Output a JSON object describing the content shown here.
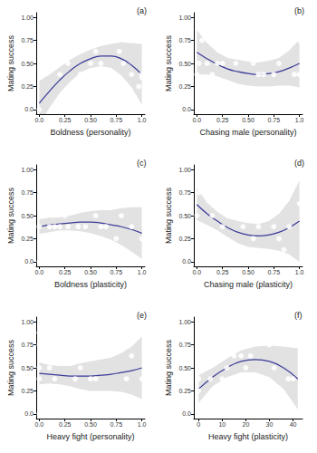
{
  "chart_data": [
    {
      "type": "scatter",
      "label": "(a)",
      "x_label": "Boldness (personality)",
      "y_label": "Mating success",
      "color": "#8a86c8",
      "marker": "circle_open",
      "grid": false,
      "xlim": [
        -0.03,
        1.03
      ],
      "ylim": [
        -0.05,
        1.05
      ],
      "xticks": [
        {
          "value": 0,
          "label": "0.0"
        },
        0.25,
        {
          "value": 0.5,
          "label": "0.50"
        },
        0.75,
        {
          "value": 1,
          "label": "1.0"
        }
      ],
      "yticks": [
        {
          "value": 0,
          "label": "0.0"
        },
        0.25,
        {
          "value": 0.5,
          "label": "0.50"
        },
        0.75,
        {
          "value": 1,
          "label": "1.00"
        }
      ],
      "x": [
        0.0,
        0.05,
        0.2,
        0.25,
        0.28,
        0.3,
        0.38,
        0.4,
        0.45,
        0.5,
        0.55,
        0.6,
        0.62,
        0.7,
        0.75,
        0.78,
        0.8,
        0.82,
        0.85,
        0.88,
        0.9,
        0.92,
        0.95,
        1.0,
        1.0,
        0.97
      ],
      "values": [
        0.0,
        0.5,
        0.38,
        0.75,
        0.5,
        0.63,
        0.75,
        0.38,
        0.38,
        0.5,
        0.63,
        0.5,
        0.38,
        0.88,
        0.75,
        0.63,
        0.0,
        0.5,
        1.0,
        0.75,
        0.38,
        0.0,
        0.0,
        0.38,
        0.35,
        0.25
      ],
      "fit": {
        "color": "#3a3a98",
        "line_style": "solid",
        "x": [
          0,
          0.1,
          0.2,
          0.3,
          0.4,
          0.5,
          0.6,
          0.7,
          0.8,
          0.9,
          1.0
        ],
        "values": [
          0.07,
          0.2,
          0.32,
          0.42,
          0.5,
          0.55,
          0.58,
          0.58,
          0.55,
          0.48,
          0.38
        ],
        "lower": [
          -0.17,
          0.02,
          0.18,
          0.3,
          0.4,
          0.45,
          0.47,
          0.45,
          0.37,
          0.24,
          0.05
        ],
        "upper": [
          0.31,
          0.38,
          0.46,
          0.54,
          0.6,
          0.65,
          0.69,
          0.71,
          0.73,
          0.72,
          0.71
        ]
      }
    },
    {
      "type": "scatter",
      "label": "(b)",
      "x_label": "Chasing male (personality)",
      "y_label": "Mating success",
      "color": "#8a86c8",
      "marker": "circle_open",
      "grid": false,
      "xlim": [
        -0.03,
        1.03
      ],
      "ylim": [
        -0.05,
        1.05
      ],
      "xticks": [
        {
          "value": 0,
          "label": "0.0"
        },
        0.25,
        {
          "value": 0.5,
          "label": "0.50"
        },
        0.75,
        {
          "value": 1,
          "label": "1.0"
        }
      ],
      "yticks": [
        {
          "value": 0,
          "label": "0.0"
        },
        0.25,
        {
          "value": 0.5,
          "label": "0.50"
        },
        0.75,
        {
          "value": 1,
          "label": "1.00"
        }
      ],
      "x": [
        0,
        0.02,
        0.05,
        0.1,
        0.15,
        0.2,
        0.25,
        0.3,
        0.32,
        0.35,
        0.38,
        0.42,
        0.45,
        0.5,
        0.55,
        0.6,
        0.62,
        0.65,
        0.7,
        0.75,
        0.8,
        0.9,
        0.95,
        1.0,
        1.0,
        0.58
      ],
      "values": [
        0.38,
        0.5,
        0.75,
        0.5,
        0.38,
        0.5,
        0.5,
        0.88,
        1.0,
        0.75,
        0.5,
        0.0,
        0.0,
        0.0,
        0.5,
        0.38,
        0.75,
        0.38,
        0.0,
        0.38,
        0.5,
        0.75,
        0.38,
        0.75,
        0.38,
        0.0
      ],
      "fit": {
        "color": "#3a3a98",
        "line_style": "solid",
        "x": [
          0,
          0.1,
          0.2,
          0.3,
          0.4,
          0.5,
          0.6,
          0.7,
          0.8,
          0.9,
          1.0
        ],
        "values": [
          0.62,
          0.55,
          0.49,
          0.44,
          0.41,
          0.39,
          0.38,
          0.39,
          0.41,
          0.45,
          0.5
        ],
        "lower": [
          0.38,
          0.38,
          0.36,
          0.32,
          0.28,
          0.26,
          0.25,
          0.25,
          0.26,
          0.26,
          0.24
        ],
        "upper": [
          0.86,
          0.72,
          0.62,
          0.56,
          0.54,
          0.52,
          0.51,
          0.53,
          0.56,
          0.64,
          0.76
        ]
      }
    },
    {
      "type": "scatter",
      "label": "(c)",
      "x_label": "Boldness (plasticity)",
      "y_label": "Mating success",
      "color": "#8a86c8",
      "marker": "circle_open",
      "grid": false,
      "xlim": [
        -0.03,
        1.03
      ],
      "ylim": [
        -0.05,
        1.05
      ],
      "xticks": [
        {
          "value": 0,
          "label": "0.0"
        },
        0.25,
        {
          "value": 0.5,
          "label": "0.50"
        },
        0.75,
        {
          "value": 1,
          "label": "1.0"
        }
      ],
      "yticks": [
        {
          "value": 0,
          "label": "0.0"
        },
        0.25,
        {
          "value": 0.5,
          "label": "0.50"
        },
        0.75,
        {
          "value": 1,
          "label": "1.00"
        }
      ],
      "x": [
        0.0,
        0.0,
        0.02,
        0.03,
        0.04,
        0.05,
        0.05,
        0.07,
        0.08,
        0.1,
        0.1,
        0.12,
        0.13,
        0.15,
        0.18,
        0.2,
        0.22,
        0.25,
        0.27,
        0.3,
        0.32,
        0.35,
        0.38,
        0.4,
        0.45,
        0.5,
        0.55,
        0.6,
        0.65,
        0.7,
        0.75,
        0.8,
        0.9,
        1.0,
        0.15,
        0.28
      ],
      "values": [
        0.38,
        0.0,
        0.75,
        0.5,
        0.63,
        0.25,
        0.0,
        0.5,
        0.88,
        0.38,
        0.13,
        0.75,
        0.5,
        0.0,
        0.63,
        0.38,
        0.75,
        0.5,
        0.0,
        1.0,
        0.25,
        0.63,
        0.38,
        0.75,
        0.38,
        0.0,
        0.5,
        0.38,
        0.38,
        0.75,
        0.25,
        0.5,
        0.38,
        0.25,
        0.38,
        0.38
      ],
      "fit": {
        "color": "#3a3a98",
        "line_style": "solid",
        "x": [
          0,
          0.1,
          0.2,
          0.3,
          0.4,
          0.5,
          0.6,
          0.7,
          0.8,
          0.9,
          1.0
        ],
        "values": [
          0.38,
          0.4,
          0.41,
          0.42,
          0.43,
          0.43,
          0.42,
          0.4,
          0.38,
          0.35,
          0.31
        ],
        "lower": [
          0.3,
          0.32,
          0.34,
          0.34,
          0.33,
          0.31,
          0.28,
          0.24,
          0.18,
          0.11,
          0.03
        ],
        "upper": [
          0.46,
          0.48,
          0.48,
          0.5,
          0.53,
          0.55,
          0.56,
          0.56,
          0.58,
          0.59,
          0.59
        ]
      }
    },
    {
      "type": "scatter",
      "label": "(d)",
      "x_label": "Chasing male (plasticity)",
      "y_label": "Mating success",
      "color": "#8a86c8",
      "marker": "circle_open",
      "grid": false,
      "xlim": [
        -0.03,
        1.03
      ],
      "ylim": [
        -0.05,
        1.05
      ],
      "xticks": [
        {
          "value": 0,
          "label": "0.0"
        },
        0.25,
        {
          "value": 0.5,
          "label": "0.50"
        },
        0.75,
        {
          "value": 1,
          "label": "1.0"
        }
      ],
      "yticks": [
        {
          "value": 0,
          "label": "0.0"
        },
        0.25,
        {
          "value": 0.5,
          "label": "0.50"
        },
        0.75,
        {
          "value": 1,
          "label": "1.00"
        }
      ],
      "x": [
        0,
        0.02,
        0.05,
        0.1,
        0.15,
        0.2,
        0.25,
        0.3,
        0.35,
        0.4,
        0.42,
        0.45,
        0.5,
        0.55,
        0.6,
        0.62,
        0.65,
        0.7,
        0.75,
        0.8,
        0.85,
        0.9,
        0.95,
        1.0
      ],
      "values": [
        0.5,
        0.75,
        0.38,
        0.88,
        0.5,
        0.63,
        0.38,
        0.5,
        0.75,
        0.5,
        0.0,
        0.38,
        0.5,
        0.25,
        0.38,
        0.0,
        0.5,
        0.0,
        0.38,
        0.25,
        0.13,
        0.38,
        0.0,
        0.63
      ],
      "fit": {
        "color": "#3a3a98",
        "line_style": "solid",
        "x": [
          0,
          0.1,
          0.2,
          0.3,
          0.4,
          0.5,
          0.6,
          0.7,
          0.8,
          0.9,
          1.0
        ],
        "values": [
          0.62,
          0.52,
          0.44,
          0.37,
          0.32,
          0.29,
          0.28,
          0.29,
          0.32,
          0.37,
          0.44
        ],
        "lower": [
          0.45,
          0.4,
          0.34,
          0.27,
          0.2,
          0.16,
          0.15,
          0.14,
          0.12,
          0.08,
          0.0
        ],
        "upper": [
          0.8,
          0.64,
          0.54,
          0.47,
          0.44,
          0.42,
          0.41,
          0.44,
          0.52,
          0.66,
          0.88
        ]
      }
    },
    {
      "type": "scatter",
      "label": "(e)",
      "x_label": "Heavy fight (personality)",
      "y_label": "Mating success",
      "color": "#8a86c8",
      "marker": "circle_open",
      "grid": false,
      "xlim": [
        -0.03,
        1.03
      ],
      "ylim": [
        -0.05,
        1.05
      ],
      "xticks": [
        {
          "value": 0,
          "label": "0.0"
        },
        0.25,
        {
          "value": 0.5,
          "label": "0.50"
        },
        0.75,
        {
          "value": 1,
          "label": "1.0"
        }
      ],
      "yticks": [
        {
          "value": 0,
          "label": "0.0"
        },
        0.25,
        {
          "value": 0.5,
          "label": "0.50"
        },
        0.75,
        {
          "value": 1,
          "label": "1.00"
        }
      ],
      "x": [
        0,
        0,
        0,
        0,
        0,
        0.02,
        0.05,
        0.1,
        0.15,
        0.18,
        0.3,
        0.35,
        0.4,
        0.45,
        0.5,
        0.55,
        0.7,
        0.75,
        0.8,
        0.85,
        0.9,
        1.0,
        0.25
      ],
      "values": [
        0.88,
        0.75,
        0.5,
        0.38,
        0.0,
        0.63,
        0.0,
        0.5,
        0.38,
        0.0,
        1.0,
        0.38,
        0.5,
        0.0,
        0.38,
        0.38,
        0.0,
        0.75,
        0.0,
        0.38,
        0.63,
        0.38,
        0.0
      ],
      "fit": {
        "color": "#3a3a98",
        "line_style": "solid",
        "x": [
          0,
          0.1,
          0.2,
          0.3,
          0.4,
          0.5,
          0.6,
          0.7,
          0.8,
          0.9,
          1.0
        ],
        "values": [
          0.44,
          0.43,
          0.42,
          0.41,
          0.41,
          0.41,
          0.42,
          0.43,
          0.45,
          0.47,
          0.5
        ],
        "lower": [
          0.32,
          0.33,
          0.32,
          0.3,
          0.27,
          0.25,
          0.25,
          0.25,
          0.24,
          0.21,
          0.16
        ],
        "upper": [
          0.56,
          0.53,
          0.52,
          0.52,
          0.55,
          0.57,
          0.59,
          0.61,
          0.66,
          0.73,
          0.84
        ]
      }
    },
    {
      "type": "scatter",
      "label": "(f)",
      "x_label": "Heavy fight (plasticity)",
      "y_label": "Mating success",
      "color": "#8a86c8",
      "marker": "circle_open",
      "grid": false,
      "xlim": [
        -2,
        44
      ],
      "ylim": [
        -0.05,
        1.05
      ],
      "xticks": [
        0,
        10,
        20,
        30,
        40
      ],
      "yticks": [
        {
          "value": 0,
          "label": "0.0"
        },
        0.25,
        {
          "value": 0.5,
          "label": "0.50"
        },
        0.75,
        {
          "value": 1,
          "label": "1.00"
        }
      ],
      "x": [
        0,
        0,
        0,
        0,
        1,
        2,
        5,
        10,
        12,
        15,
        18,
        20,
        22,
        25,
        28,
        30,
        32,
        35,
        38,
        40,
        8
      ],
      "values": [
        0.88,
        0.38,
        0.0,
        0.25,
        0.5,
        0.0,
        0.38,
        0.38,
        0.5,
        0.63,
        0.63,
        0.5,
        0.63,
        1.0,
        0.38,
        0.75,
        0.5,
        0.0,
        0.38,
        0.38,
        0.25
      ],
      "fit": {
        "color": "#3a3a98",
        "line_style": "solid",
        "x": [
          0,
          6,
          12,
          18,
          24,
          30,
          36,
          42
        ],
        "values": [
          0.27,
          0.4,
          0.5,
          0.57,
          0.59,
          0.57,
          0.5,
          0.38
        ],
        "lower": [
          0.12,
          0.3,
          0.4,
          0.45,
          0.45,
          0.4,
          0.27,
          0.05
        ],
        "upper": [
          0.42,
          0.5,
          0.6,
          0.69,
          0.73,
          0.74,
          0.73,
          0.71
        ]
      }
    }
  ]
}
